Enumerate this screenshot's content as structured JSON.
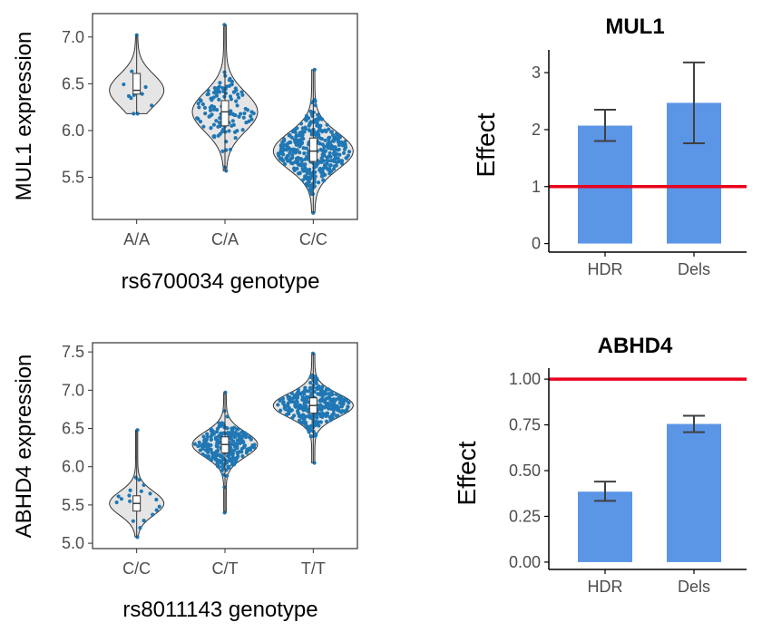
{
  "chart_data": [
    {
      "type": "violin",
      "ylabel": "MUL1 expression",
      "xlabel": "rs6700034 genotype",
      "categories": [
        "A/A",
        "C/A",
        "C/C"
      ],
      "yticks": [
        5.5,
        6.0,
        6.5,
        7.0
      ],
      "ytick_labels": [
        "5.5",
        "6.0",
        "6.5",
        "7.0"
      ],
      "ylim": [
        5.05,
        7.25
      ],
      "groups": [
        {
          "name": "A/A",
          "min": 6.18,
          "q1": 6.39,
          "median": 6.43,
          "q3": 6.61,
          "max": 7.02,
          "n": 12
        },
        {
          "name": "C/A",
          "min": 5.57,
          "q1": 6.05,
          "median": 6.2,
          "q3": 6.32,
          "max": 7.13,
          "n": 120
        },
        {
          "name": "C/C",
          "min": 5.12,
          "q1": 5.67,
          "median": 5.78,
          "q3": 5.92,
          "max": 6.65,
          "n": 400
        }
      ],
      "colors": {
        "violin": "#e5e5e5",
        "points": "#1f77b4",
        "box": "#ffffff"
      }
    },
    {
      "type": "bar",
      "title": "MUL1",
      "ylabel": "Effect",
      "categories": [
        "HDR",
        "Dels"
      ],
      "values": [
        2.07,
        2.47
      ],
      "errors_low": [
        1.8,
        1.76
      ],
      "errors_high": [
        2.35,
        3.18
      ],
      "reference_line": 1,
      "yticks": [
        0,
        1,
        2,
        3
      ],
      "ytick_labels": [
        "0",
        "1",
        "2",
        "3"
      ],
      "ylim": [
        -0.15,
        3.4
      ],
      "colors": {
        "bar": "#5b95e6",
        "reference": "#e8001c",
        "error": "#404040"
      }
    },
    {
      "type": "violin",
      "ylabel": "ABHD4 expression",
      "xlabel": "rs8011143 genotype",
      "categories": [
        "C/C",
        "C/T",
        "T/T"
      ],
      "yticks": [
        5.0,
        5.5,
        6.0,
        6.5,
        7.0,
        7.5
      ],
      "ytick_labels": [
        "5.0",
        "5.5",
        "6.0",
        "6.5",
        "7.0",
        "7.5"
      ],
      "ylim": [
        4.93,
        7.62
      ],
      "groups": [
        {
          "name": "C/C",
          "min": 5.08,
          "q1": 5.42,
          "median": 5.52,
          "q3": 5.62,
          "max": 6.48,
          "n": 20
        },
        {
          "name": "C/T",
          "min": 5.4,
          "q1": 6.18,
          "median": 6.29,
          "q3": 6.39,
          "max": 6.97,
          "n": 250
        },
        {
          "name": "T/T",
          "min": 6.05,
          "q1": 6.7,
          "median": 6.8,
          "q3": 6.9,
          "max": 7.48,
          "n": 300
        }
      ],
      "colors": {
        "violin": "#e5e5e5",
        "points": "#1f77b4",
        "box": "#ffffff"
      }
    },
    {
      "type": "bar",
      "title": "ABHD4",
      "ylabel": "Effect",
      "categories": [
        "HDR",
        "Dels"
      ],
      "values": [
        0.385,
        0.755
      ],
      "errors_low": [
        0.335,
        0.71
      ],
      "errors_high": [
        0.44,
        0.8
      ],
      "reference_line": 1.0,
      "yticks": [
        0.0,
        0.25,
        0.5,
        0.75,
        1.0
      ],
      "ytick_labels": [
        "0.00",
        "0.25",
        "0.50",
        "0.75",
        "1.00"
      ],
      "ylim": [
        -0.04,
        1.06
      ],
      "colors": {
        "bar": "#5b95e6",
        "reference": "#e8001c",
        "error": "#404040"
      }
    }
  ]
}
